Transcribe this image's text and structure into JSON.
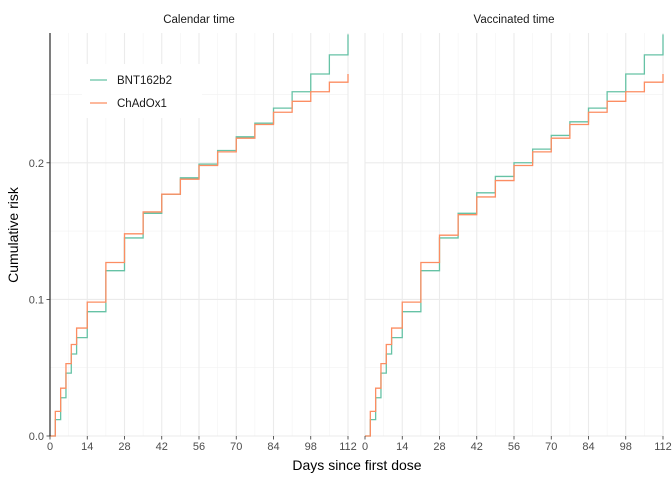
{
  "chart_data": {
    "type": "line",
    "step": true,
    "xlabel": "Days since first dose",
    "ylabel": "Cumulative risk",
    "xlim": [
      0,
      112
    ],
    "ylim": [
      0,
      0.295
    ],
    "x_ticks": [
      0,
      14,
      28,
      42,
      56,
      70,
      84,
      98,
      112
    ],
    "y_ticks": [
      0,
      0.1,
      0.2
    ],
    "y_tick_labels": [
      "0.0",
      "0.1",
      "0.2"
    ],
    "grid": true,
    "legend_position": "top-left",
    "colors": {
      "BNT162b2": "#66c2a5",
      "ChAdOx1": "#fc8d62"
    },
    "panels": [
      {
        "title": "Calendar time",
        "series": [
          {
            "name": "BNT162b2",
            "x": [
              0,
              2,
              4,
              6,
              8,
              10,
              14,
              21,
              28,
              35,
              42,
              49,
              56,
              63,
              70,
              77,
              84,
              91,
              98,
              105,
              112
            ],
            "y": [
              0,
              0.012,
              0.028,
              0.046,
              0.06,
              0.072,
              0.091,
              0.121,
              0.145,
              0.163,
              0.177,
              0.189,
              0.199,
              0.209,
              0.219,
              0.229,
              0.24,
              0.252,
              0.265,
              0.279,
              0.294
            ]
          },
          {
            "name": "ChAdOx1",
            "x": [
              0,
              2,
              4,
              6,
              8,
              10,
              14,
              21,
              28,
              35,
              42,
              49,
              56,
              63,
              70,
              77,
              84,
              91,
              98,
              105,
              112
            ],
            "y": [
              0,
              0.018,
              0.035,
              0.053,
              0.067,
              0.079,
              0.098,
              0.127,
              0.148,
              0.164,
              0.177,
              0.188,
              0.198,
              0.208,
              0.218,
              0.228,
              0.237,
              0.245,
              0.252,
              0.259,
              0.265
            ]
          }
        ]
      },
      {
        "title": "Vaccinated time",
        "series": [
          {
            "name": "BNT162b2",
            "x": [
              0,
              2,
              4,
              6,
              8,
              10,
              14,
              21,
              28,
              35,
              42,
              49,
              56,
              63,
              70,
              77,
              84,
              91,
              98,
              105,
              112
            ],
            "y": [
              0,
              0.012,
              0.028,
              0.046,
              0.06,
              0.072,
              0.091,
              0.121,
              0.145,
              0.163,
              0.178,
              0.19,
              0.2,
              0.21,
              0.22,
              0.23,
              0.24,
              0.252,
              0.265,
              0.279,
              0.294
            ]
          },
          {
            "name": "ChAdOx1",
            "x": [
              0,
              2,
              4,
              6,
              8,
              10,
              14,
              21,
              28,
              35,
              42,
              49,
              56,
              63,
              70,
              77,
              84,
              91,
              98,
              105,
              112
            ],
            "y": [
              0,
              0.018,
              0.035,
              0.053,
              0.067,
              0.079,
              0.098,
              0.127,
              0.147,
              0.162,
              0.175,
              0.187,
              0.198,
              0.208,
              0.218,
              0.228,
              0.237,
              0.245,
              0.252,
              0.259,
              0.265
            ]
          }
        ]
      }
    ]
  }
}
